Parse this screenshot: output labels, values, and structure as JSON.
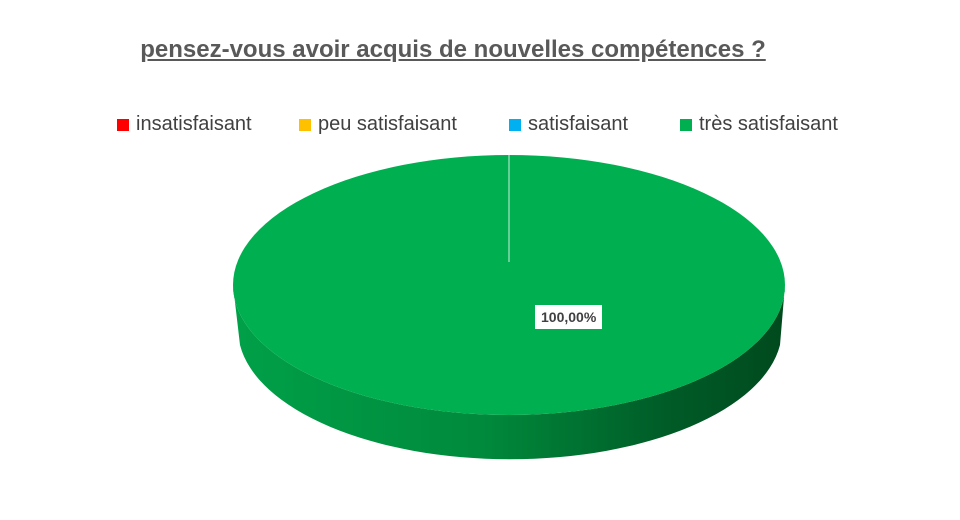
{
  "chart_data": {
    "type": "pie",
    "title": "pensez-vous avoir acquis de nouvelles compétences ?",
    "categories": [
      "insatisfaisant",
      "peu satisfaisant",
      "satisfaisant",
      "très satisfaisant"
    ],
    "values": [
      0,
      0,
      0,
      1
    ],
    "colors": [
      "#FF0000",
      "#FFC000",
      "#00B0F0",
      "#00B050"
    ],
    "data_labels": [
      "",
      "",
      "",
      "100,00%"
    ],
    "legend": "top",
    "style": "3d"
  }
}
